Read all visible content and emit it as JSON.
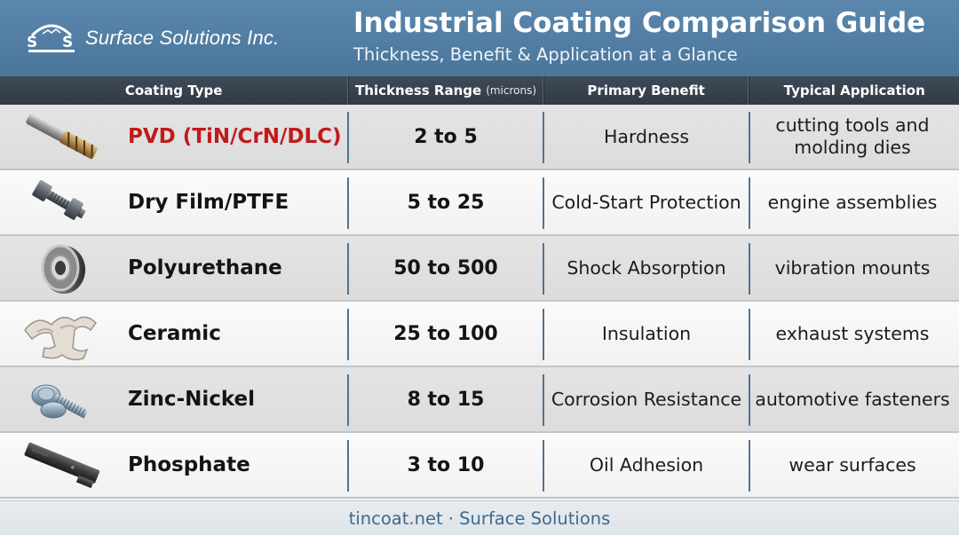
{
  "header": {
    "company": "Surface Solutions Inc.",
    "title": "Industrial Coating Comparison Guide",
    "subtitle": "Thickness, Benefit & Application at a Glance",
    "logo_letters": [
      "S",
      "S"
    ]
  },
  "columns": {
    "type": "Coating Type",
    "thickness": "Thickness Range",
    "thickness_unit": "(microns)",
    "benefit": "Primary Benefit",
    "application": "Typical Application"
  },
  "rows": [
    {
      "icon": "end-mill-icon",
      "name": "PVD (TiN/CrN/DLC)",
      "thickness": "2 to 5",
      "benefit": "Hardness",
      "application": "cutting tools and molding dies",
      "highlight": "#c21a1a"
    },
    {
      "icon": "bolt-nut-icon",
      "name": "Dry Film/PTFE",
      "thickness": "5 to 25",
      "benefit": "Cold-Start Protection",
      "application": "engine assemblies"
    },
    {
      "icon": "bushing-icon",
      "name": "Polyurethane",
      "thickness": "50 to 500",
      "benefit": "Shock Absorption",
      "application": "vibration mounts"
    },
    {
      "icon": "exhaust-manifold-icon",
      "name": "Ceramic",
      "thickness": "25 to 100",
      "benefit": "Insulation",
      "application": "exhaust systems"
    },
    {
      "icon": "bolt-washer-icon",
      "name": "Zinc-Nickel",
      "thickness": "8 to 15",
      "benefit": "Corrosion Resistance",
      "application": "automotive fasteners"
    },
    {
      "icon": "slide-rail-icon",
      "name": "Phosphate",
      "thickness": "3 to 10",
      "benefit": "Oil Adhesion",
      "application": "wear surfaces"
    }
  ],
  "footer": {
    "text": "tincoat.net · Surface Solutions"
  },
  "colors": {
    "header_bg": "#5b87ad",
    "column_header_bg": "#3f4a58",
    "accent": "#c21a1a",
    "footer_text": "#3d6a8f"
  }
}
